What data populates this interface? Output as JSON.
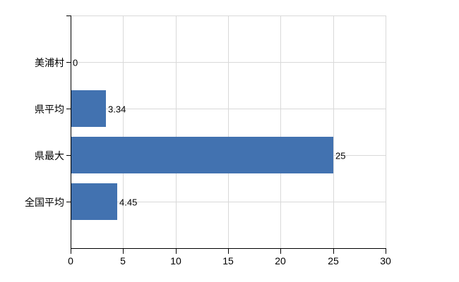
{
  "chart_data": {
    "type": "bar",
    "orientation": "horizontal",
    "title": "",
    "xlabel": "",
    "ylabel": "",
    "categories": [
      "美浦村",
      "県平均",
      "県最大",
      "全国平均"
    ],
    "values": [
      0,
      3.34,
      25,
      4.45
    ],
    "value_labels": [
      "0",
      "3.34",
      "25",
      "4.45"
    ],
    "xlim": [
      0,
      30
    ],
    "xticks": [
      0,
      5,
      10,
      15,
      20,
      25,
      30
    ],
    "xtick_labels": [
      "0",
      "5",
      "10",
      "15",
      "20",
      "25",
      "30"
    ],
    "grid": "on",
    "legend_position": "none",
    "bar_color": "#4272b0",
    "grid_color": "#d9d9d9",
    "axis_color": "#000000",
    "text_color": "#000000",
    "background_color": "#ffffff"
  }
}
